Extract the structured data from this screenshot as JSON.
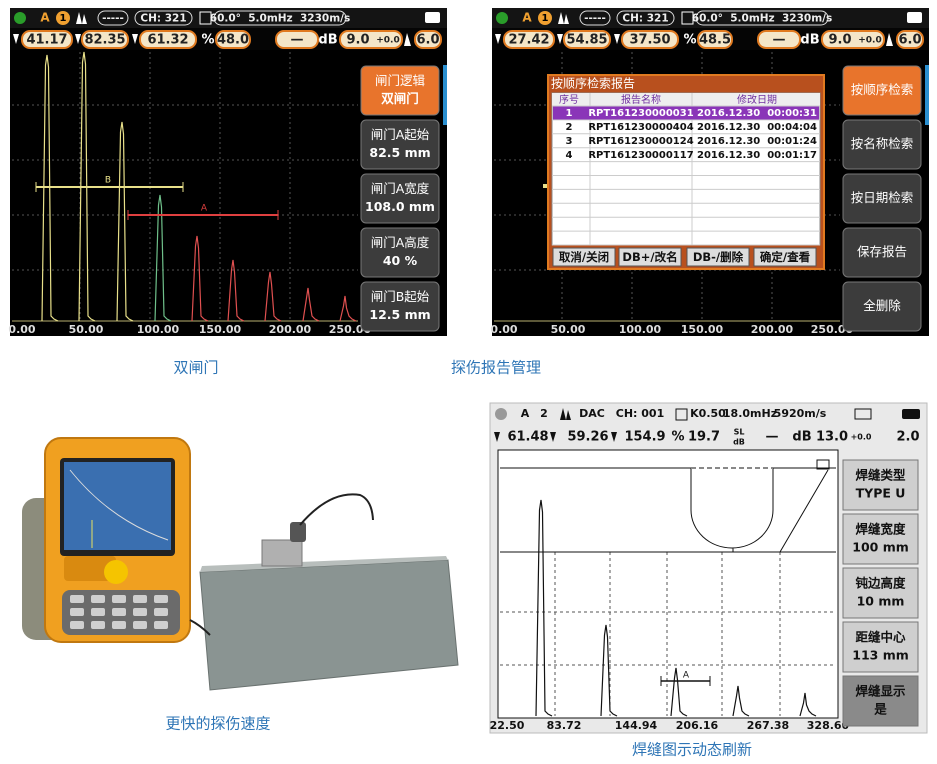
{
  "screens": [
    {
      "status": [
        "A",
        "1",
        "-----",
        "CH: 321",
        "60.0°  5.0mHz  3230m/s"
      ],
      "readings": [
        "41.17",
        "82.35",
        "61.32",
        "%",
        "48.0",
        "—",
        "dB",
        "9.0",
        "+0.0",
        "6.0"
      ],
      "menu": [
        [
          "闸门逻辑",
          "双闸门"
        ],
        [
          "闸门A起始",
          "82.5 mm"
        ],
        [
          "闸门A宽度",
          "108.0 mm"
        ],
        [
          "闸门A高度",
          "40 %"
        ],
        [
          "闸门B起始",
          "12.5 mm"
        ]
      ],
      "gates": [
        "B",
        "A"
      ],
      "axis": [
        "0.00",
        "50.00",
        "100.00",
        "150.00",
        "200.00",
        "250.00"
      ],
      "caption": "双闸门"
    },
    {
      "status": [
        "A",
        "1",
        "-----",
        "CH: 321",
        "60.0°  5.0mHz  3230m/s"
      ],
      "readings": [
        "27.42",
        "54.85",
        "37.50",
        "%",
        "48.5",
        "—",
        "dB",
        "9.0",
        "+0.0",
        "6.0"
      ],
      "menu": [
        [
          "按顺序检索"
        ],
        [
          "按名称检索"
        ],
        [
          "按日期检索"
        ],
        [
          "保存报告"
        ],
        [
          "全删除"
        ]
      ],
      "dialog": {
        "title": "按顺序检索报告",
        "headers": [
          "序号",
          "报告名称",
          "修改日期"
        ],
        "rows": [
          [
            "1",
            "RPT161230000031",
            "2016.12.30  00:00:31"
          ],
          [
            "2",
            "RPT161230000404",
            "2016.12.30  00:04:04"
          ],
          [
            "3",
            "RPT161230000124",
            "2016.12.30  00:01:24"
          ],
          [
            "4",
            "RPT161230000117",
            "2016.12.30  00:01:17"
          ]
        ],
        "buttons": [
          "取消/关闭",
          "DB+/改名",
          "DB-/删除",
          "确定/查看"
        ]
      },
      "axis": [
        "0.00",
        "50.00",
        "100.00",
        "150.00",
        "200.00",
        "250.00"
      ],
      "caption": "探伤报告管理"
    },
    {
      "caption": "更快的探伤速度"
    },
    {
      "status": [
        "A",
        "2",
        "DAC",
        "CH: 001",
        "K0.50",
        "18.0mHz",
        "5920m/s"
      ],
      "readings": [
        "61.48",
        "59.26",
        "154.9",
        "%",
        "19.7",
        "SL",
        "dB",
        "—",
        "dB",
        "13.0",
        "+0.0",
        "2.0"
      ],
      "menu": [
        [
          "焊缝类型",
          "TYPE U"
        ],
        [
          "焊缝宽度",
          "100 mm"
        ],
        [
          "钝边高度",
          "10 mm"
        ],
        [
          "距缝中心",
          "113 mm"
        ],
        [
          "焊缝显示",
          "是"
        ]
      ],
      "gates": [
        "A"
      ],
      "axis": [
        "22.50",
        "83.72",
        "144.94",
        "206.16",
        "267.38",
        "328.60"
      ],
      "caption": "焊缝图示动态刷新"
    }
  ]
}
